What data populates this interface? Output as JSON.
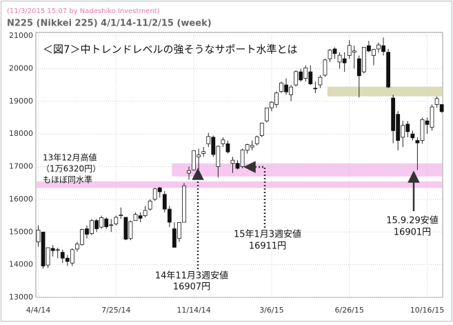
{
  "chart_data": {
    "type": "candlestick",
    "header": "(11/3/2015 15:07 by Nadeshiko Investment)",
    "subtitle": "N225 (Nikkei 225)  4/1/14-11/2/15 (week)",
    "title": "＜図7＞中トレンドレベルの強そうなサポート水準とは",
    "categories": [
      "4/4/14",
      null,
      null,
      null,
      null,
      null,
      null,
      null,
      null,
      null,
      null,
      null,
      null,
      null,
      null,
      null,
      "7/25/14",
      null,
      null,
      null,
      null,
      null,
      null,
      null,
      null,
      null,
      null,
      null,
      null,
      null,
      null,
      null,
      "11/14/14",
      null,
      null,
      null,
      null,
      null,
      null,
      null,
      null,
      null,
      null,
      null,
      null,
      null,
      null,
      null,
      "3/6/15",
      null,
      null,
      null,
      null,
      null,
      null,
      null,
      null,
      null,
      null,
      null,
      null,
      null,
      null,
      null,
      "6/26/15",
      null,
      null,
      null,
      null,
      null,
      null,
      null,
      null,
      null,
      null,
      null,
      null,
      null,
      null,
      null,
      "10/16/15",
      null,
      null,
      null
    ],
    "open": [
      14700,
      15000,
      13990,
      14500,
      14450,
      14380,
      14200,
      14050,
      14480,
      14620,
      15100,
      14950,
      15350,
      15150,
      15400,
      15200,
      15250,
      15500,
      15450,
      14800,
      15350,
      15500,
      15500,
      15700,
      16000,
      16350,
      16150,
      15700,
      15100,
      14800,
      15300,
      16800,
      16900,
      17300,
      17400,
      17700,
      17900,
      17000,
      17700,
      17700,
      17100,
      17100,
      17000,
      17500,
      17600,
      17700,
      17950,
      18400,
      18800,
      18900,
      19300,
      19500,
      19200,
      19500,
      19900,
      19700,
      19900,
      19400,
      19500,
      19800,
      20300,
      20600,
      20200,
      20300,
      20400,
      20500,
      20300,
      19900,
      20700,
      20400,
      20600,
      20700,
      20500,
      19100,
      18600,
      17900,
      18300,
      18000,
      17800,
      17800,
      18400,
      18200,
      18900,
      18900
    ],
    "high": [
      15200,
      15000,
      14520,
      14600,
      14520,
      14460,
      14300,
      14500,
      14700,
      15100,
      15200,
      15400,
      15400,
      15500,
      15450,
      15400,
      15500,
      15750,
      15450,
      15350,
      15600,
      15600,
      15800,
      16000,
      16350,
      16380,
      16250,
      15800,
      15300,
      15300,
      16500,
      17000,
      17500,
      17550,
      17600,
      18030,
      17950,
      17650,
      17900,
      17800,
      17300,
      17200,
      17550,
      17700,
      17800,
      17950,
      18350,
      18800,
      19000,
      19300,
      19600,
      19700,
      19500,
      19950,
      20000,
      20100,
      20100,
      19600,
      19800,
      20300,
      20600,
      20650,
      20500,
      20500,
      20868,
      20700,
      20400,
      20650,
      20850,
      20600,
      20800,
      20950,
      20600,
      19200,
      18700,
      18400,
      18400,
      18100,
      17900,
      18500,
      18500,
      18900,
      19150,
      18900
    ],
    "low": [
      14550,
      13880,
      13900,
      14250,
      14200,
      14050,
      13960,
      13960,
      14400,
      14580,
      14800,
      14900,
      15000,
      15100,
      15100,
      15000,
      15200,
      15400,
      14750,
      14750,
      15350,
      15300,
      15450,
      15650,
      15950,
      16050,
      15600,
      15150,
      14530,
      14700,
      15300,
      16600,
      16880,
      16907,
      17300,
      17600,
      17300,
      16670,
      17600,
      17400,
      16808,
      16911,
      16950,
      17400,
      17500,
      17650,
      17900,
      18350,
      18700,
      18800,
      19250,
      19200,
      19000,
      19450,
      19600,
      19600,
      19500,
      19250,
      19400,
      19750,
      20200,
      20300,
      20000,
      19900,
      20300,
      20000,
      19115,
      19850,
      20500,
      20100,
      20500,
      20400,
      19400,
      17714,
      17500,
      17600,
      17900,
      17800,
      16901,
      17700,
      18000,
      18100,
      18800,
      18650
    ],
    "close": [
      15060,
      13960,
      14520,
      14430,
      14460,
      14200,
      14100,
      14460,
      14630,
      15080,
      14930,
      15350,
      15100,
      15440,
      15160,
      15220,
      15450,
      15520,
      14780,
      15320,
      15540,
      15420,
      15660,
      15950,
      16320,
      16230,
      15700,
      15300,
      14532,
      15291,
      16414,
      16880,
      17490,
      17357,
      17459,
      17920,
      17371,
      17621,
      17818,
      17450,
      17197,
      16950,
      17511,
      17674,
      17648,
      17913,
      18332,
      18797,
      18971,
      19254,
      19560,
      19285,
      19435,
      19907,
      19652,
      20020,
      19531,
      19379,
      19732,
      20264,
      20563,
      20460,
      20407,
      20174,
      20706,
      20540,
      19780,
      20650,
      20540,
      20585,
      20725,
      20520,
      19435,
      18100,
      17800,
      18260,
      18070,
      17880,
      17725,
      18438,
      18291,
      18825,
      19083,
      18683
    ],
    "ylim": [
      13000,
      21000
    ],
    "yticks": [
      13000,
      14000,
      15000,
      16000,
      17000,
      18000,
      19000,
      20000,
      21000
    ],
    "grid": true,
    "zones": [
      {
        "y": [
          16700,
          17100
        ],
        "color": "#f7c8f0"
      },
      {
        "y": [
          16350,
          16550
        ],
        "color": "#f7c8f0"
      },
      {
        "y": [
          19150,
          19450
        ],
        "color": "#dddcb8"
      }
    ],
    "annotations": [
      {
        "lines": [
          "13年12月高値",
          "（1万6320円）",
          "もほぼ同水準"
        ]
      },
      {
        "lines": [
          "14年11月3週安値",
          "16907円"
        ]
      },
      {
        "lines": [
          "15年1月3週安値",
          "16911円"
        ]
      },
      {
        "lines": [
          "15.9.29安値",
          "16901円"
        ]
      }
    ]
  }
}
